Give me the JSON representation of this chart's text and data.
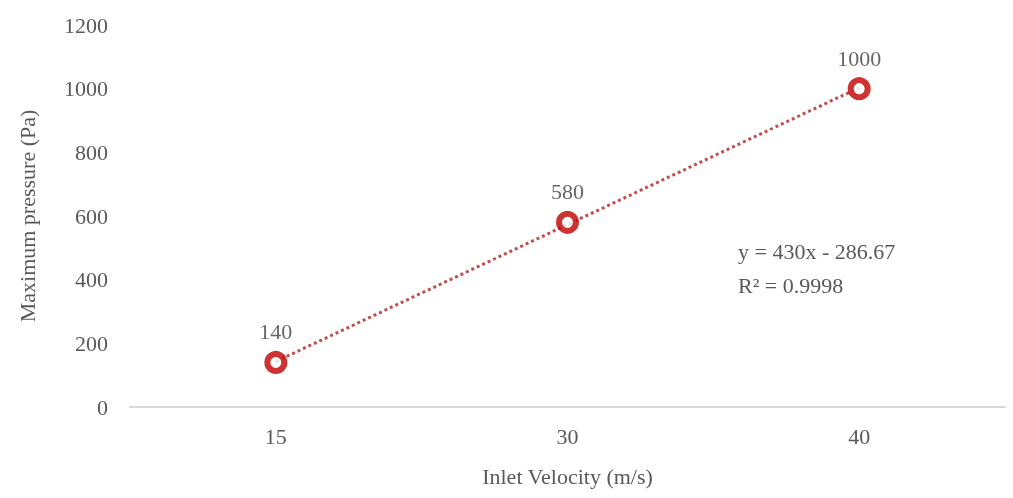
{
  "chart_data": {
    "type": "scatter",
    "xlabel": "Inlet Velocity (m/s)",
    "ylabel": "Maximum pressure (Pa)",
    "categories": [
      "15",
      "30",
      "40"
    ],
    "series": [
      {
        "color": "#c00000",
        "values": [
          140,
          580,
          1000
        ],
        "value_labels": [
          "140",
          "580",
          "1000"
        ],
        "marker": "circle"
      },
      {
        "type": "line",
        "color": "#c0504d",
        "x": [
          "15",
          "30",
          "40"
        ],
        "values": [
          143,
          573,
          1003
        ],
        "line_style": "dotted",
        "marker": "none"
      }
    ],
    "ylim": [
      0,
      1200
    ],
    "yticks": [
      0,
      200,
      400,
      600,
      800,
      1000,
      1200
    ],
    "grid": false,
    "annotations": [
      "y = 430x - 286.67",
      "R² = 0.9998"
    ]
  }
}
